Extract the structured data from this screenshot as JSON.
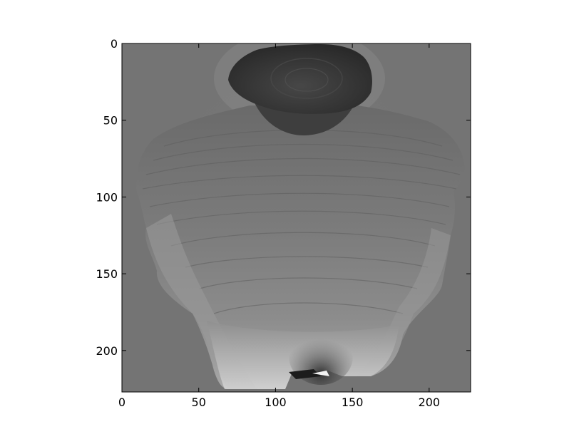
{
  "figure": {
    "background": "#ffffff",
    "image_bg_color": "#747474",
    "colormap": "gray",
    "subject": "depth map of a human torso and head"
  },
  "chart_data": {
    "type": "heatmap",
    "title": "",
    "xlabel": "",
    "ylabel": "",
    "x_range": [
      0,
      227
    ],
    "y_range": [
      227,
      0
    ],
    "y_inverted": true,
    "x_ticks": [
      0,
      50,
      100,
      150,
      200
    ],
    "y_ticks": [
      0,
      50,
      100,
      150,
      200
    ],
    "grid": false
  }
}
